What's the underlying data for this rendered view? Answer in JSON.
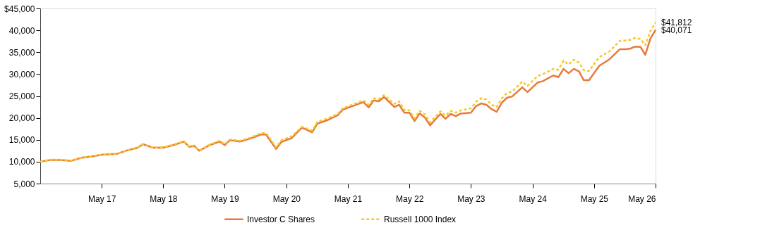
{
  "chart_data": {
    "type": "line",
    "x": [
      "2016-05",
      "2016-07",
      "2016-09",
      "2016-11",
      "2017-01",
      "2017-03",
      "2017-05",
      "2017-08",
      "2017-10",
      "2017-12",
      "2018-01",
      "2018-03",
      "2018-05",
      "2018-07",
      "2018-09",
      "2018-10",
      "2018-11",
      "2018-12",
      "2019-02",
      "2019-04",
      "2019-05",
      "2019-06",
      "2019-08",
      "2019-10",
      "2019-12",
      "2020-01",
      "2020-03",
      "2020-04",
      "2020-06",
      "2020-08",
      "2020-10",
      "2020-11",
      "2021-01",
      "2021-03",
      "2021-04",
      "2021-08",
      "2021-09",
      "2021-10",
      "2021-11",
      "2021-12",
      "2022-02",
      "2022-03",
      "2022-04",
      "2022-05",
      "2022-06",
      "2022-07",
      "2022-08",
      "2022-09",
      "2022-11",
      "2022-12",
      "2023-01",
      "2023-02",
      "2023-03",
      "2023-05",
      "2023-06",
      "2023-07",
      "2023-08",
      "2023-09",
      "2023-10",
      "2023-11",
      "2023-12",
      "2024-01",
      "2024-03",
      "2024-04",
      "2024-06",
      "2024-07",
      "2024-09",
      "2024-10",
      "2024-11",
      "2024-12",
      "2025-01",
      "2025-02",
      "2025-03",
      "2025-04",
      "2025-06",
      "2025-08",
      "2025-10",
      "2025-11",
      "2025-12",
      "2026-01",
      "2026-02",
      "2026-03",
      "2026-04",
      "2026-05"
    ],
    "series": [
      {
        "name": "Investor C Shares",
        "color": "#e8793c",
        "line_style": "solid",
        "values": [
          10000,
          10400,
          10400,
          10200,
          10900,
          11200,
          11600,
          11800,
          12600,
          13200,
          14000,
          13200,
          13200,
          13800,
          14600,
          13400,
          13600,
          12500,
          13800,
          14600,
          13800,
          14900,
          14600,
          15300,
          16200,
          16200,
          12900,
          14500,
          15400,
          17800,
          16700,
          18700,
          19500,
          20600,
          21900,
          23600,
          22400,
          24000,
          23800,
          24800,
          22500,
          23000,
          21200,
          21200,
          19300,
          21000,
          20100,
          18300,
          20900,
          19800,
          20900,
          20400,
          21000,
          21200,
          22700,
          23300,
          23000,
          22000,
          21400,
          23500,
          24600,
          24900,
          27000,
          25900,
          28100,
          28400,
          29700,
          29300,
          31200,
          30200,
          31200,
          30600,
          28600,
          28600,
          31900,
          33400,
          35700,
          35700,
          35800,
          36300,
          36200,
          34400,
          38200,
          40071
        ]
      },
      {
        "name": "Russell 1000 Index",
        "color": "#f6c928",
        "line_style": "dashed",
        "values": [
          10000,
          10450,
          10450,
          10250,
          10950,
          11250,
          11650,
          11850,
          12650,
          13250,
          14050,
          13250,
          13300,
          13900,
          14700,
          13500,
          13700,
          12600,
          13900,
          14800,
          14000,
          15100,
          14800,
          15500,
          16500,
          16600,
          13300,
          14900,
          15800,
          18000,
          17100,
          19100,
          19900,
          20900,
          22200,
          24000,
          23000,
          24500,
          24300,
          25200,
          23200,
          23800,
          21800,
          21700,
          19900,
          21600,
          20800,
          19000,
          21500,
          20500,
          21600,
          21200,
          21700,
          22200,
          23700,
          24500,
          24200,
          23000,
          22500,
          24500,
          25700,
          26000,
          28300,
          27300,
          29600,
          30000,
          31200,
          31000,
          33100,
          32200,
          33300,
          32600,
          30900,
          30700,
          33900,
          35200,
          37600,
          37700,
          37800,
          38300,
          38000,
          36600,
          39900,
          41812
        ]
      }
    ],
    "xlim": [
      "2016-05",
      "2026-05"
    ],
    "xticks": [
      {
        "value": "2017-05",
        "label": "May 17"
      },
      {
        "value": "2018-05",
        "label": "May 18"
      },
      {
        "value": "2019-05",
        "label": "May 19"
      },
      {
        "value": "2020-05",
        "label": "May 20"
      },
      {
        "value": "2021-05",
        "label": "May 21"
      },
      {
        "value": "2022-05",
        "label": "May 22"
      },
      {
        "value": "2023-05",
        "label": "May 23"
      },
      {
        "value": "2024-05",
        "label": "May 24"
      },
      {
        "value": "2025-05",
        "label": "May 25"
      },
      {
        "value": "2026-05",
        "label": "May 26"
      }
    ],
    "ylim": [
      5000,
      45000
    ],
    "yticks": [
      {
        "value": 5000,
        "label": "5,000"
      },
      {
        "value": 10000,
        "label": "10,000"
      },
      {
        "value": 15000,
        "label": "15,000"
      },
      {
        "value": 20000,
        "label": "20,000"
      },
      {
        "value": 25000,
        "label": "25,000"
      },
      {
        "value": 30000,
        "label": "30,000"
      },
      {
        "value": 35000,
        "label": "35,000"
      },
      {
        "value": 40000,
        "label": "40,000"
      },
      {
        "value": 45000,
        "label": "$45,000"
      }
    ],
    "annotations": [
      {
        "text": "$41,812",
        "x": "2026-05",
        "y": 41812
      },
      {
        "text": "$40,071",
        "x": "2026-05",
        "y": 40071
      }
    ],
    "grid": false,
    "legend": "bottom",
    "marker": "none"
  }
}
